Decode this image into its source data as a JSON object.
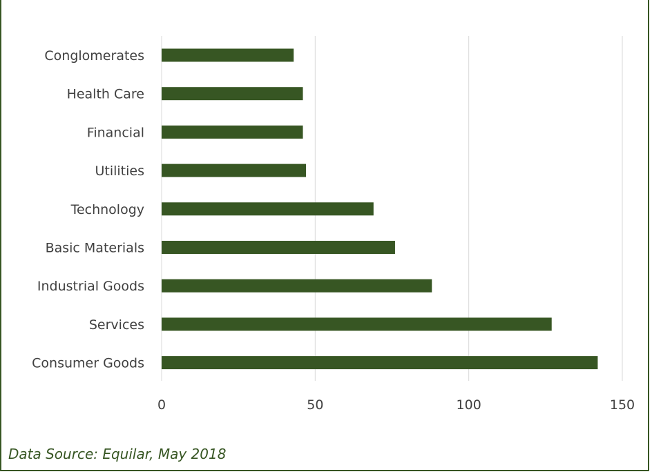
{
  "chart_data": {
    "type": "bar",
    "orientation": "horizontal",
    "categories": [
      "Conglomerates",
      "Health Care",
      "Financial",
      "Utilities",
      "Technology",
      "Basic Materials",
      "Industrial Goods",
      "Services",
      "Consumer Goods"
    ],
    "values": [
      43,
      46,
      46,
      47,
      69,
      76,
      88,
      127,
      142
    ],
    "xlim": [
      0,
      150
    ],
    "xticks": [
      0,
      50,
      100,
      150
    ],
    "grid": "vertical",
    "legend": "none",
    "title": "",
    "xlabel": "",
    "ylabel": "",
    "bar_color": "#375623",
    "grid_color": "#d9d9d9",
    "label_color": "#404040"
  },
  "source_note": "Data Source: Equilar, May 2018",
  "colors": {
    "border": "#375623",
    "source_text": "#375623"
  }
}
